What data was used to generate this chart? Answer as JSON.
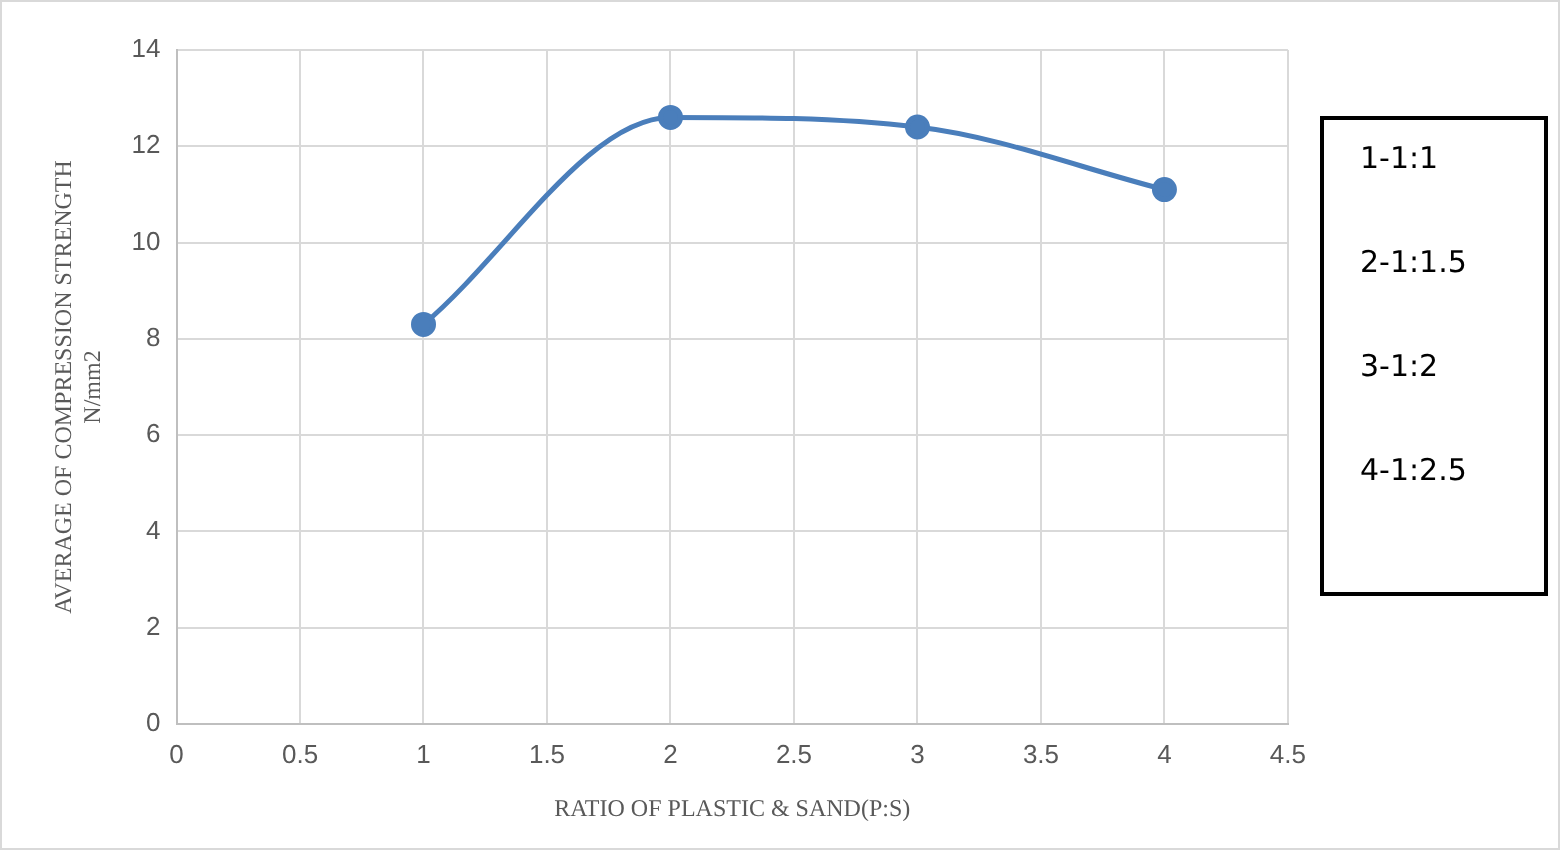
{
  "chart_data": {
    "type": "line",
    "xlabel": "RATIO OF PLASTIC & SAND(P:S)",
    "ylabel": "AVERAGE OF COMPRESSION STRENGTH\nN/mm2",
    "x": [
      1,
      2,
      3,
      4
    ],
    "series": [
      {
        "color": "#4a7ebb",
        "values": [
          8.3,
          12.6,
          12.4,
          11.1
        ]
      }
    ],
    "xlim": [
      0,
      4.5
    ],
    "xticks": [
      0,
      0.5,
      1,
      1.5,
      2,
      2.5,
      3,
      3.5,
      4,
      4.5
    ],
    "ylim": [
      0,
      14
    ],
    "yticks": [
      0,
      2,
      4,
      6,
      8,
      10,
      12,
      14
    ],
    "grid": true,
    "legend": false,
    "marker": "circle",
    "line_style": "solid",
    "annotations": [
      "1-1:1",
      "2-1:1.5",
      "3-1:2",
      "4-1:2.5"
    ]
  }
}
